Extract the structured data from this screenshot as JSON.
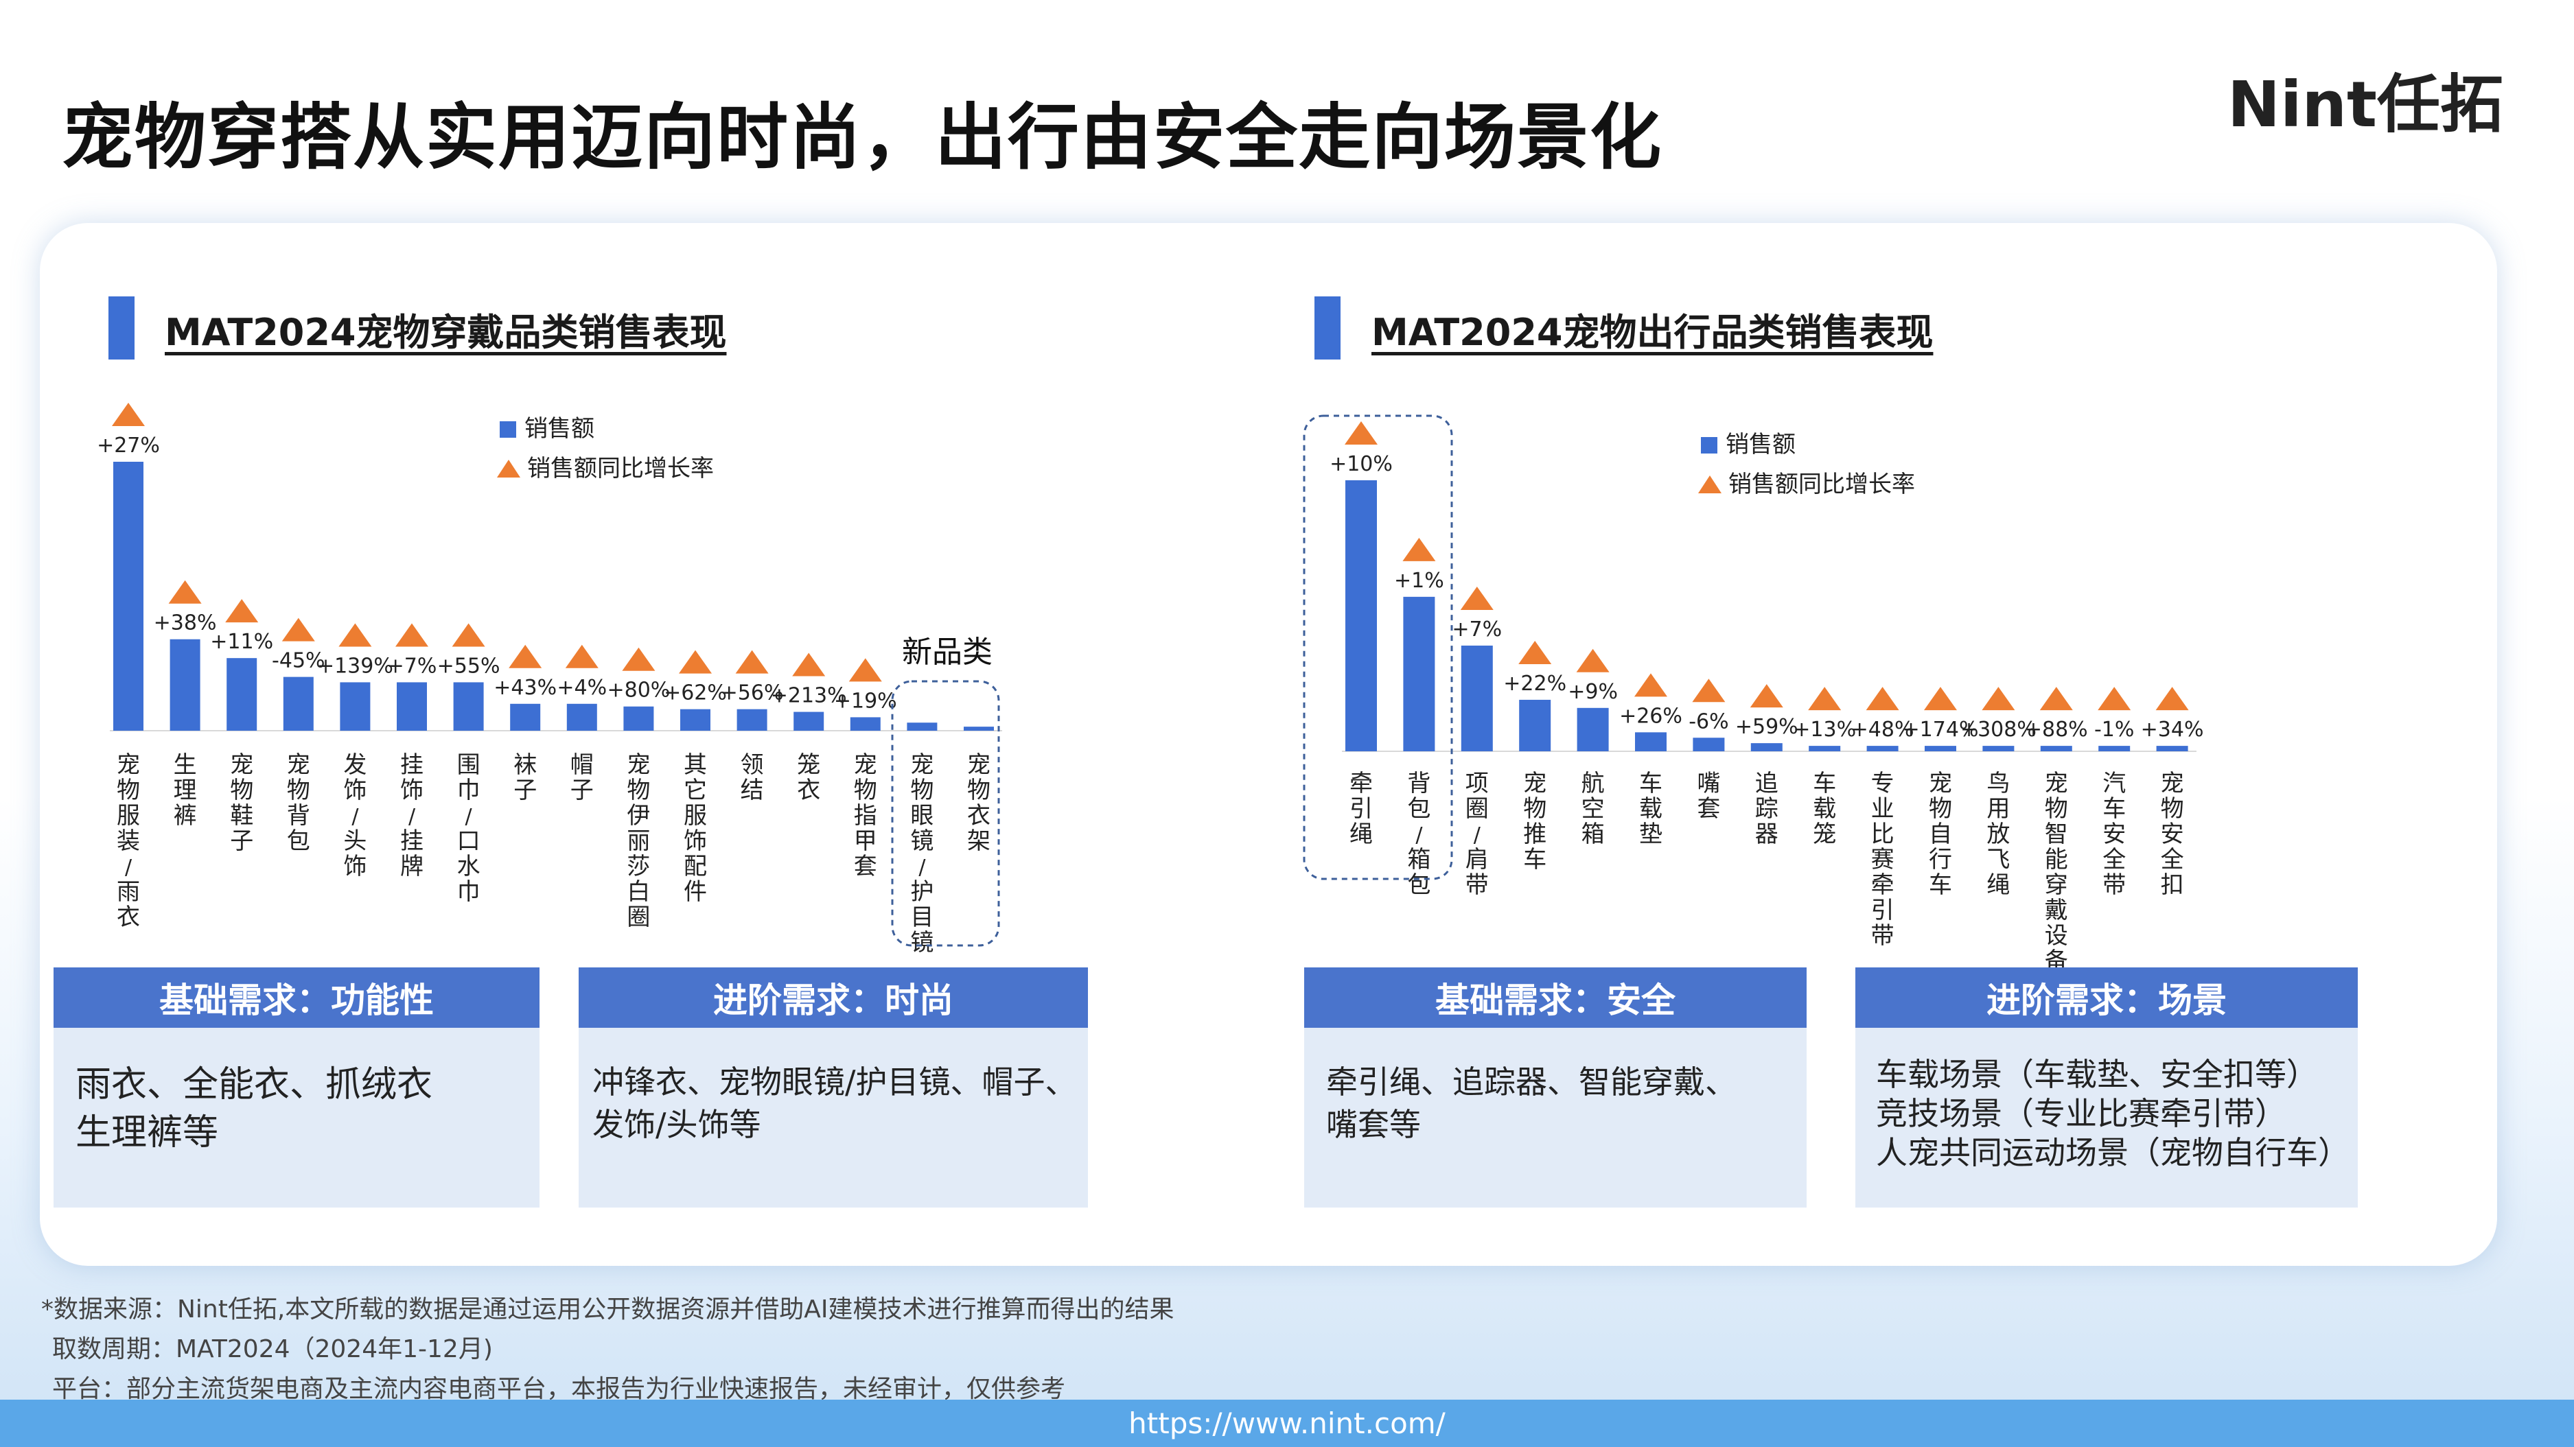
{
  "page": {
    "title": "宠物穿搭从实用迈向时尚，出行由安全走向场景化",
    "logo": "Nint任拓"
  },
  "colors": {
    "bar": "#3d6fd3",
    "growth_marker": "#ed7d31",
    "need_header": "#4a74cc",
    "need_body": "#e2ebf7"
  },
  "legend": {
    "sales": "销售额",
    "growth": "销售额同比增长率"
  },
  "chart_data": [
    {
      "type": "bar",
      "title": "MAT2024宠物穿戴品类销售表现",
      "categories": [
        "宠物服装/雨衣",
        "生理裤",
        "宠物鞋子",
        "宠物背包",
        "发饰/头饰",
        "挂饰/挂牌",
        "围巾/口水巾",
        "袜子",
        "帽子",
        "宠物伊丽莎白圈",
        "其它服饰配件",
        "领结",
        "笼衣",
        "宠物指甲套",
        "宠物眼镜/护目镜",
        "宠物衣架"
      ],
      "series": [
        {
          "name": "销售额",
          "values": [
            100,
            34,
            27,
            20,
            18,
            18,
            18,
            10,
            10,
            9,
            8,
            8,
            7,
            5,
            3,
            1.5
          ]
        },
        {
          "name": "销售额同比增长率",
          "values": [
            "+27%",
            "+38%",
            "+11%",
            "-45%",
            "+139%",
            "+7%",
            "+55%",
            "+43%",
            "+4%",
            "+80%",
            "+62%",
            "+56%",
            "+213%",
            "+19%",
            "",
            ""
          ]
        }
      ],
      "annotation": "新品类",
      "ylim": [
        0,
        100
      ]
    },
    {
      "type": "bar",
      "title": "MAT2024宠物出行品类销售表现",
      "categories": [
        "牵引绳",
        "背包/箱包",
        "项圈/肩带",
        "宠物推车",
        "航空箱",
        "车载垫",
        "嘴套",
        "追踪器",
        "车载笼",
        "专业比赛牵引带",
        "宠物自行车",
        "鸟用放飞绳",
        "宠物智能穿戴设备",
        "汽车安全带",
        "宠物安全扣"
      ],
      "series": [
        {
          "name": "销售额",
          "values": [
            100,
            57,
            39,
            19,
            16,
            7,
            5,
            3,
            2,
            2,
            2,
            2,
            2,
            2,
            2
          ]
        },
        {
          "name": "销售额同比增长率",
          "values": [
            "+10%",
            "+1%",
            "+7%",
            "+22%",
            "+9%",
            "+26%",
            "-6%",
            "+59%",
            "+13%",
            "+48%",
            "+174%",
            "+308%",
            "+88%",
            "-1%",
            "+34%"
          ]
        }
      ],
      "ylim": [
        0,
        100
      ]
    }
  ],
  "needs": [
    {
      "header": "基础需求：功能性",
      "lines": [
        "雨衣、全能衣、抓绒衣",
        "生理裤等"
      ]
    },
    {
      "header": "进阶需求：时尚",
      "lines": [
        "冲锋衣、宠物眼镜/护目镜、帽子、",
        "发饰/头饰等"
      ]
    },
    {
      "header": "基础需求：安全",
      "lines": [
        "牵引绳、追踪器、智能穿戴、",
        "嘴套等"
      ]
    },
    {
      "header": "进阶需求：场景",
      "lines": [
        "车载场景（车载垫、安全扣等）",
        "竞技场景（专业比赛牵引带）",
        "人宠共同运动场景（宠物自行车）"
      ]
    }
  ],
  "notes": {
    "source": "*数据来源：Nint任拓,本文所载的数据是通过运用公开数据资源并借助AI建模技术进行推算而得出的结果",
    "period": "取数周期：MAT2024（2024年1-12月)",
    "platform": "平台：部分主流货架电商及主流内容电商平台，本报告为行业快速报告，未经审计，仅供参考"
  },
  "footer": {
    "url": "https://www.nint.com/"
  }
}
